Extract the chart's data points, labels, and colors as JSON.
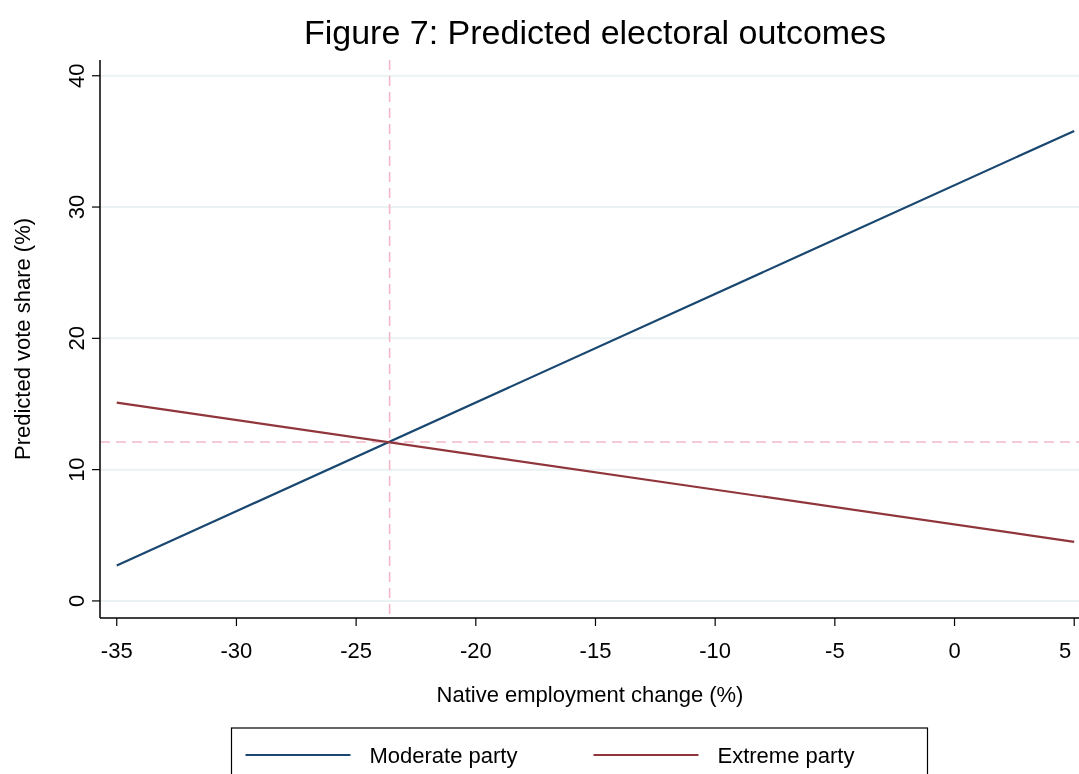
{
  "chart_data": {
    "type": "line",
    "title": "Figure 7: Predicted electoral outcomes",
    "xlabel": "Native employment change (%)",
    "ylabel": "Predicted vote share (%)",
    "x": [
      -35,
      5
    ],
    "series": [
      {
        "name": "Moderate party",
        "color": "#1a476f",
        "values": [
          2.7,
          35.8
        ]
      },
      {
        "name": "Extreme party",
        "color": "#90353b",
        "values": [
          15.1,
          4.5
        ]
      }
    ],
    "xlim": [
      -35.7,
      5.2
    ],
    "ylim": [
      -1.3,
      41.2
    ],
    "xticks": [
      -35,
      -30,
      -25,
      -20,
      -15,
      -10,
      -5,
      0,
      5
    ],
    "yticks": [
      0,
      10,
      20,
      30,
      40
    ],
    "ref_lines": [
      {
        "axis": "x",
        "value": -23.6,
        "color": "#f4b9c8",
        "line_style": "dashed"
      },
      {
        "axis": "y",
        "value": 12.1,
        "color": "#f4b9c8",
        "line_style": "dashed"
      }
    ],
    "grid": "y",
    "legend": "bottom",
    "marker": "none",
    "line_style": "solid"
  }
}
